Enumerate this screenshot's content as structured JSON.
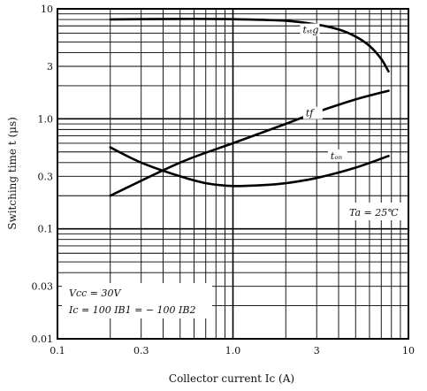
{
  "chart_data": {
    "type": "line",
    "title": "",
    "xlabel": "Collector current  Ic (A)",
    "ylabel": "Switching time  t (μs)",
    "x_scale": "log",
    "y_scale": "log",
    "xlim": [
      0.1,
      10
    ],
    "ylim": [
      0.01,
      10
    ],
    "grid": true,
    "x_ticks": [
      {
        "value": 0.1,
        "label": "0.1"
      },
      {
        "value": 0.3,
        "label": "0.3"
      },
      {
        "value": 1,
        "label": "1.0"
      },
      {
        "value": 3,
        "label": "3"
      },
      {
        "value": 10,
        "label": "10"
      }
    ],
    "y_ticks": [
      {
        "value": 10,
        "label": "10"
      },
      {
        "value": 3,
        "label": "3"
      },
      {
        "value": 1,
        "label": "1.0"
      },
      {
        "value": 0.3,
        "label": "0.3"
      },
      {
        "value": 0.1,
        "label": "0.1"
      },
      {
        "value": 0.03,
        "label": "0.03"
      },
      {
        "value": 0.01,
        "label": "0.01"
      }
    ],
    "series": [
      {
        "name": "tstg",
        "label": "tₛₜg",
        "label_at": {
          "x": 2.5,
          "y": 6.0
        },
        "points": [
          {
            "x": 0.2,
            "y": 8.0
          },
          {
            "x": 0.5,
            "y": 8.1
          },
          {
            "x": 1.0,
            "y": 8.05
          },
          {
            "x": 2.0,
            "y": 7.8
          },
          {
            "x": 3.0,
            "y": 7.2
          },
          {
            "x": 4.0,
            "y": 6.5
          },
          {
            "x": 5.0,
            "y": 5.6
          },
          {
            "x": 6.0,
            "y": 4.6
          },
          {
            "x": 7.0,
            "y": 3.5
          },
          {
            "x": 7.7,
            "y": 2.7
          }
        ]
      },
      {
        "name": "tf",
        "label": "tf",
        "label_at": {
          "x": 2.6,
          "y": 1.05
        },
        "points": [
          {
            "x": 0.2,
            "y": 0.2
          },
          {
            "x": 0.5,
            "y": 0.4
          },
          {
            "x": 1.0,
            "y": 0.6
          },
          {
            "x": 2.0,
            "y": 0.9
          },
          {
            "x": 3.0,
            "y": 1.15
          },
          {
            "x": 5.0,
            "y": 1.5
          },
          {
            "x": 7.7,
            "y": 1.8
          }
        ]
      },
      {
        "name": "ton",
        "label": "tₒₙ",
        "label_at": {
          "x": 3.6,
          "y": 0.43
        },
        "points": [
          {
            "x": 0.2,
            "y": 0.55
          },
          {
            "x": 0.3,
            "y": 0.4
          },
          {
            "x": 0.5,
            "y": 0.3
          },
          {
            "x": 0.7,
            "y": 0.26
          },
          {
            "x": 1.0,
            "y": 0.245
          },
          {
            "x": 1.5,
            "y": 0.25
          },
          {
            "x": 2.0,
            "y": 0.26
          },
          {
            "x": 3.0,
            "y": 0.29
          },
          {
            "x": 5.0,
            "y": 0.36
          },
          {
            "x": 7.7,
            "y": 0.46
          }
        ]
      }
    ],
    "annotations": [
      {
        "name": "ta-annotation",
        "text": "Ta = 25℃"
      },
      {
        "name": "vcc-annotation",
        "text": "Vcc = 30V"
      },
      {
        "name": "ic-annotation",
        "text": "Ic = 100 IB1 = − 100 IB2"
      }
    ]
  }
}
